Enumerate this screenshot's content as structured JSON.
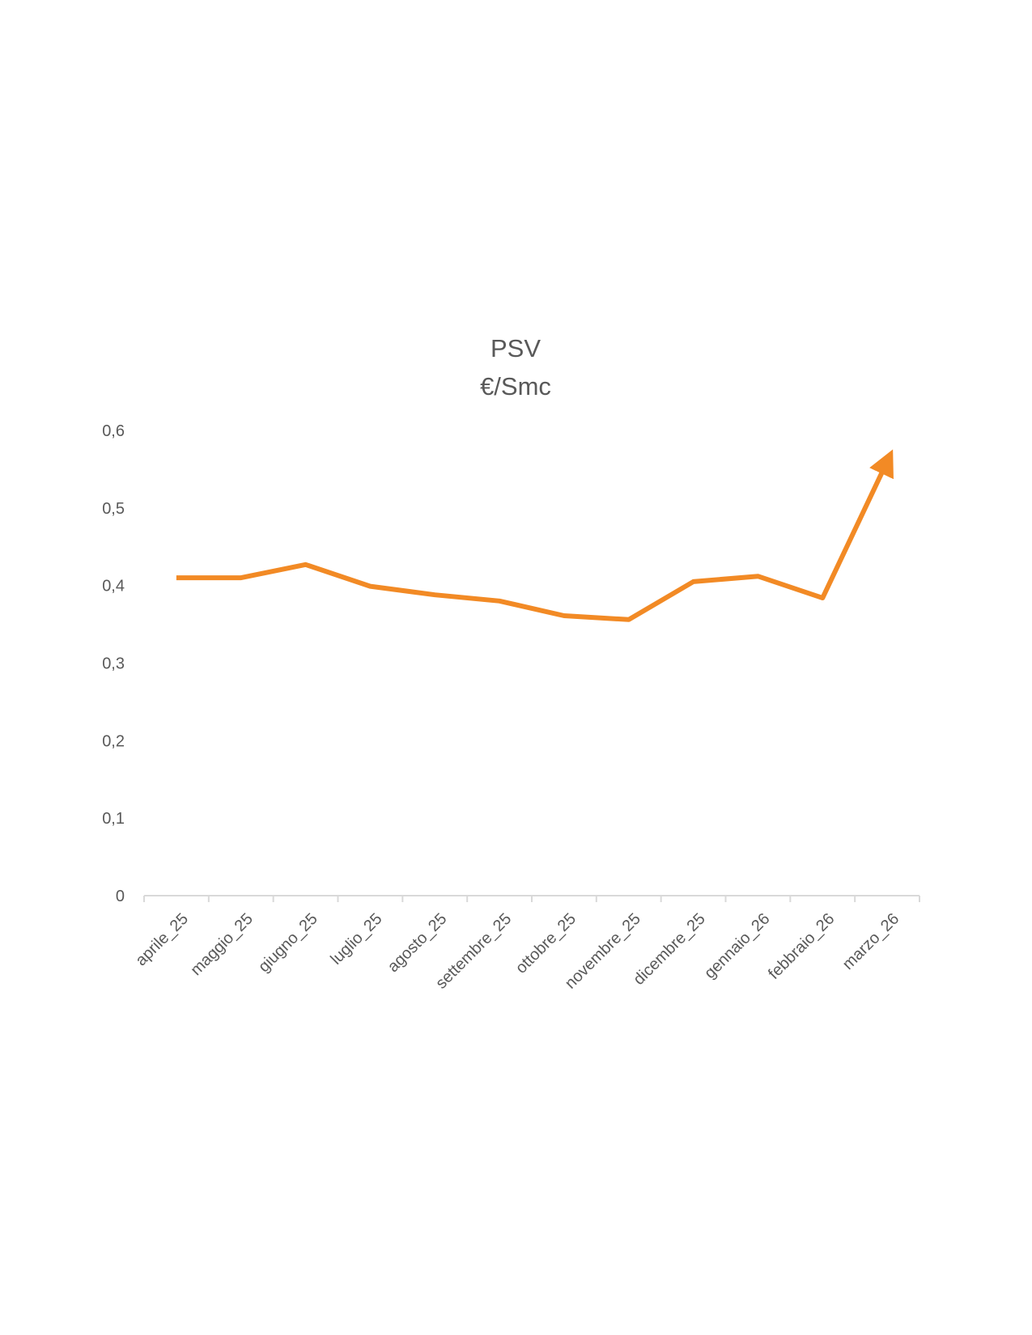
{
  "chart_data": {
    "type": "line",
    "title": "PSV",
    "subtitle": "€/Smc",
    "xlabel": "",
    "ylabel": "",
    "categories": [
      "aprile_25",
      "maggio_25",
      "giugno_25",
      "luglio_25",
      "agosto_25",
      "settembre_25",
      "ottobre_25",
      "novembre_25",
      "dicembre_25",
      "gennaio_26",
      "febbraio_26",
      "marzo_26"
    ],
    "series": [
      {
        "values": [
          0.41,
          0.41,
          0.427,
          0.399,
          0.388,
          0.38,
          0.361,
          0.356,
          0.405,
          0.412,
          0.384,
          0.56
        ],
        "color": "#F28A25",
        "end_marker": "arrow"
      }
    ],
    "y_ticks": [
      "0",
      "0,1",
      "0,2",
      "0,3",
      "0,4",
      "0,5",
      "0,6"
    ],
    "ylim": [
      0,
      0.6
    ],
    "grid": false,
    "legend": "none"
  }
}
